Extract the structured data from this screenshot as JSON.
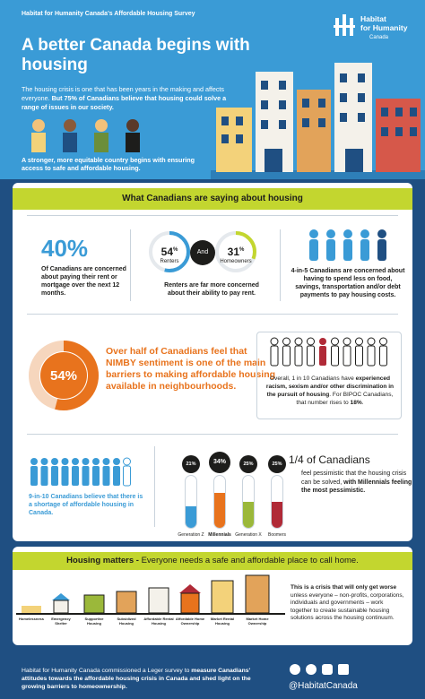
{
  "header": {
    "survey": "Habitat for Humanity Canada's Affordable Housing Survey",
    "title": "A better Canada begins with housing",
    "logo_line1": "Habitat",
    "logo_line2": "for Humanity",
    "logo_sub": "Canada",
    "intro_1": "The housing crisis is one that has been years in the making and affects everyone. ",
    "intro_2": "But 75% of Canadians believe that housing could solve a range of issues in our society.",
    "tagline": "A stronger, more equitable country begins with ensuring access to safe and affordable housing."
  },
  "section": {
    "title": "What Canadians are saying about housing"
  },
  "stat40": {
    "value": "40%",
    "text": "Of Canadians are concerned about paying their rent or mortgage over the next 12 months."
  },
  "renters": {
    "value": "54",
    "pct": "%",
    "label": "Renters",
    "fraction": 0.54
  },
  "and_label": "And",
  "homeowners": {
    "value": "31",
    "pct": "%",
    "label": "Homeowners",
    "fraction": 0.31
  },
  "renters_text": "Renters are far more concerned about their ability to pay rent.",
  "four_in_five": "4-in-5 Canadians are concerned about having to spend less on food, savings, transportation and/or debt payments to pay housing costs.",
  "nimby": {
    "value": "54%",
    "fraction": 0.54,
    "text": "Over half of Canadians feel that NIMBY sentiment is one of the main barriers to making affordable housing available in neighbourhoods."
  },
  "bipoc": {
    "t1": "Overall, 1 in 10 Canadians have ",
    "t2": "experienced racism, sexism and/or other discrimination in the pursuit of housing",
    "t3": ". For BIPOC Canadians, that number rises to ",
    "t4": "18%",
    "t5": "."
  },
  "nine_in_ten": "9-in-10 Canadians believe that there is a shortage of affordable housing in Canada.",
  "generations": [
    {
      "label": "Generation Z",
      "value": "21%",
      "fraction": 0.21,
      "color": "#3a9bd6"
    },
    {
      "label": "Millennials",
      "value": "34%",
      "fraction": 0.34,
      "color": "#e8731d"
    },
    {
      "label": "Generation X",
      "value": "25%",
      "fraction": 0.25,
      "color": "#9bb83a"
    },
    {
      "label": "Boomers",
      "value": "25%",
      "fraction": 0.25,
      "color": "#b02a37"
    }
  ],
  "quarter": {
    "title": "1/4 of Canadians",
    "t1": "feel pessimistic that the housing crisis can be solved, ",
    "t2": "with Millennials feeling the most pessimistic."
  },
  "housing_matters": {
    "bold": "Housing matters - ",
    "rest": "Everyone needs a safe and affordable place to call home.",
    "continuum": [
      "Homelessness",
      "Emergency Shelter",
      "Supportive Housing",
      "Subsidized Housing",
      "Affordable Rental Housing",
      "Affordable Home Ownership",
      "Market Rental Housing",
      "Market Home Ownership"
    ],
    "crisis_bold": "This is a crisis that will only get worse",
    "crisis_rest": " unless everyone – non-profits, corporations, individuals and governments – work together to create sustainable housing solutions across the housing continuum."
  },
  "footer": {
    "t1": "Habitat for Humanity Canada commissioned a Leger survey to ",
    "t2": "measure Canadians' attitudes towards the affordable housing crisis in Canada and shed light on the growing barriers to homeownership.",
    "handle": "@HabitatCanada"
  },
  "colors": {
    "blue": "#3a9bd6",
    "navy": "#1f4f82",
    "lime": "#c3d62f",
    "orange": "#e8731d",
    "red": "#b02a37"
  }
}
